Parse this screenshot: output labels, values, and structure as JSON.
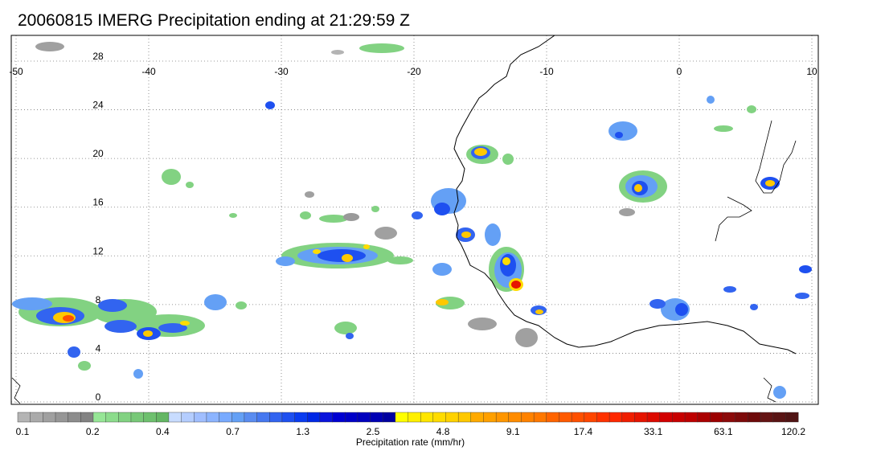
{
  "title": "20060815 IMERG Precipitation ending at 21:29:59 Z",
  "map": {
    "lon_range": [
      -50,
      10
    ],
    "lat_range": [
      -0.5,
      30
    ],
    "lon_ticks": [
      "-50",
      "-40",
      "-30",
      "-20",
      "-10",
      "0",
      "10"
    ],
    "lat_ticks": [
      "0",
      "4",
      "8",
      "12",
      "16",
      "20",
      "24",
      "28"
    ],
    "gridlines": "dotted",
    "coastline_color": "#000000"
  },
  "colorbar": {
    "label": "Precipitation rate (mm/hr)",
    "tick_labels": [
      "0.1",
      "0.2",
      "0.4",
      "0.7",
      "1.3",
      "2.5",
      "4.8",
      "9.1",
      "17.4",
      "33.1",
      "63.1",
      "120.2"
    ],
    "colors": [
      "#b4b4b4",
      "#aaaaaa",
      "#a0a0a0",
      "#969696",
      "#8c8c8c",
      "#828282",
      "#96e696",
      "#8cdc8c",
      "#82d282",
      "#78c878",
      "#6ec06e",
      "#64b664",
      "#c8dcff",
      "#b4cdff",
      "#a0beff",
      "#8cb4ff",
      "#78aaff",
      "#64a0f5",
      "#5a8cf0",
      "#4678f0",
      "#3264f0",
      "#1e50f0",
      "#0a3cf0",
      "#0028e6",
      "#0a14dc",
      "#0000d2",
      "#0000c8",
      "#0000be",
      "#0000b4",
      "#0000a0",
      "#ffff00",
      "#fff000",
      "#ffe600",
      "#ffdc00",
      "#ffd200",
      "#ffc800",
      "#ffaa00",
      "#ffa000",
      "#ff9600",
      "#ff8c00",
      "#ff8200",
      "#ff7800",
      "#ff6400",
      "#ff5a00",
      "#ff5000",
      "#ff4600",
      "#ff3200",
      "#ff2800",
      "#f01e00",
      "#e61400",
      "#dc0a00",
      "#d20000",
      "#c80000",
      "#be0000",
      "#aa0000",
      "#9b0000",
      "#8c0a0a",
      "#7d0a0a",
      "#6e0a0a",
      "#641414",
      "#5a1414",
      "#501414"
    ]
  }
}
